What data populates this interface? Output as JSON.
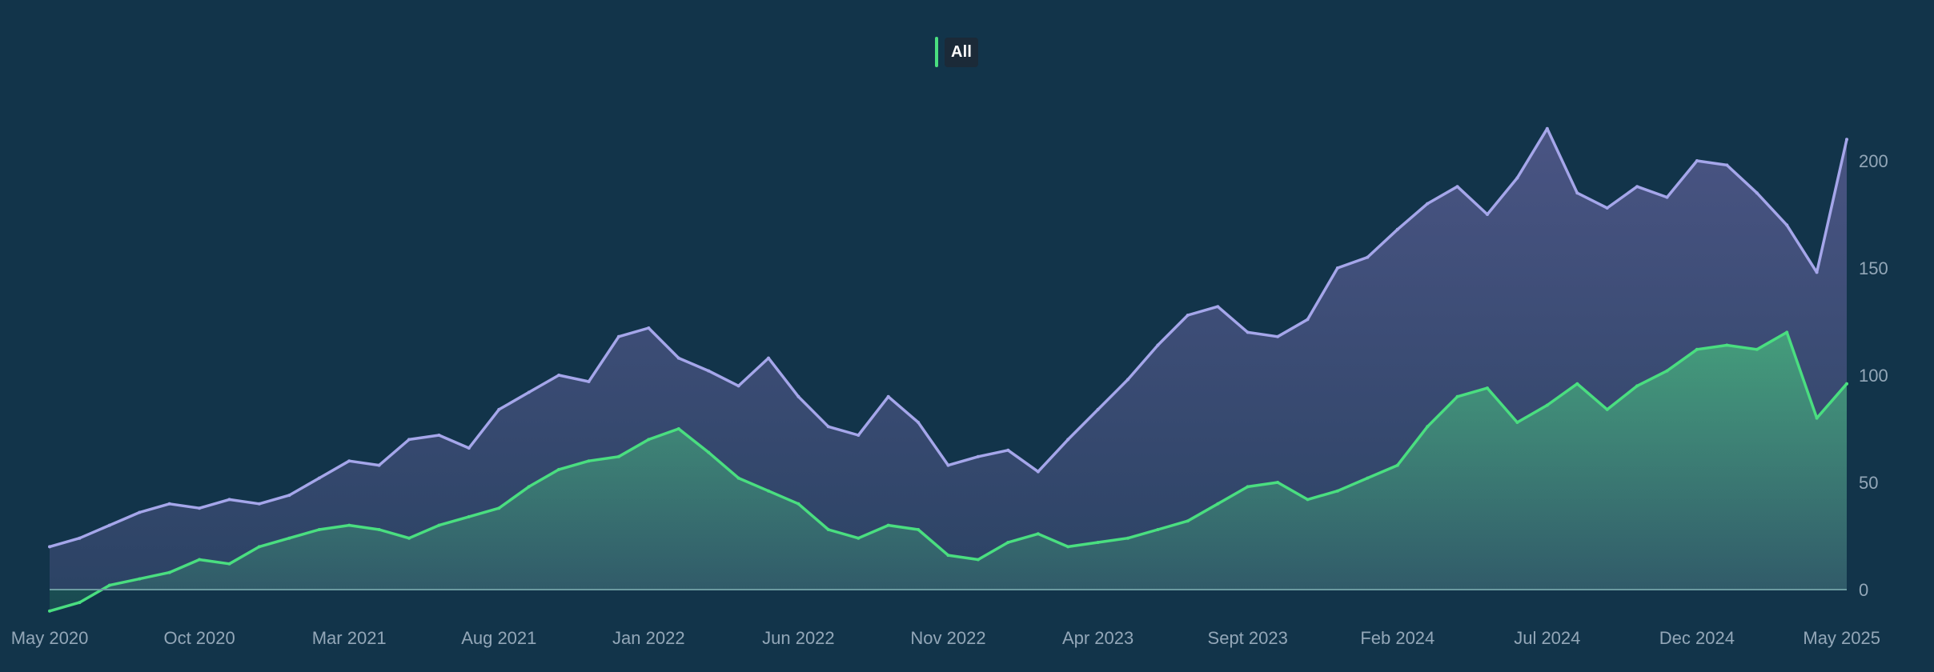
{
  "legend": {
    "label": "All",
    "color": "#4ade80"
  },
  "colors": {
    "background": "#12344a",
    "series_purple_line": "#a5a6ea",
    "series_green_line": "#4ade80",
    "axis_text": "#93a7b8",
    "baseline": "#6b9aa0"
  },
  "chart_data": {
    "type": "area",
    "x_range": [
      "2020-05",
      "2025-05"
    ],
    "x_tick_labels": [
      "May 2020",
      "Oct 2020",
      "Mar 2021",
      "Aug 2021",
      "Jan 2022",
      "Jun 2022",
      "Nov 2022",
      "Apr 2023",
      "Sept 2023",
      "Feb 2024",
      "Jul 2024",
      "Dec 2024",
      "May 2025"
    ],
    "y_tick_labels": [
      "0",
      "50",
      "100",
      "150",
      "200"
    ],
    "y_axis_side": "right",
    "ylim": [
      0,
      220
    ],
    "grid": false,
    "legend_position": "top-center",
    "series": [
      {
        "color": "#a5a6ea",
        "x": [
          "2020-05",
          "2020-06",
          "2020-07",
          "2020-08",
          "2020-09",
          "2020-10",
          "2020-11",
          "2020-12",
          "2021-01",
          "2021-02",
          "2021-03",
          "2021-04",
          "2021-05",
          "2021-06",
          "2021-07",
          "2021-08",
          "2021-09",
          "2021-10",
          "2021-11",
          "2021-12",
          "2022-01",
          "2022-02",
          "2022-03",
          "2022-04",
          "2022-05",
          "2022-06",
          "2022-07",
          "2022-08",
          "2022-09",
          "2022-10",
          "2022-11",
          "2022-12",
          "2023-01",
          "2023-02",
          "2023-03",
          "2023-04",
          "2023-05",
          "2023-06",
          "2023-07",
          "2023-08",
          "2023-09",
          "2023-10",
          "2023-11",
          "2023-12",
          "2024-01",
          "2024-02",
          "2024-03",
          "2024-04",
          "2024-05",
          "2024-06",
          "2024-07",
          "2024-08",
          "2024-09",
          "2024-10",
          "2024-11",
          "2024-12",
          "2025-01",
          "2025-02",
          "2025-03",
          "2025-04",
          "2025-05"
        ],
        "values": [
          20,
          24,
          30,
          36,
          40,
          38,
          42,
          40,
          44,
          52,
          60,
          58,
          70,
          72,
          66,
          84,
          92,
          100,
          97,
          118,
          122,
          108,
          102,
          95,
          108,
          90,
          76,
          72,
          90,
          78,
          58,
          62,
          65,
          55,
          70,
          84,
          98,
          114,
          128,
          132,
          120,
          118,
          126,
          150,
          155,
          168,
          180,
          188,
          175,
          192,
          215,
          185,
          178,
          188,
          183,
          200,
          198,
          185,
          170,
          148,
          210
        ]
      },
      {
        "color": "#4ade80",
        "x": [
          "2020-05",
          "2020-06",
          "2020-07",
          "2020-08",
          "2020-09",
          "2020-10",
          "2020-11",
          "2020-12",
          "2021-01",
          "2021-02",
          "2021-03",
          "2021-04",
          "2021-05",
          "2021-06",
          "2021-07",
          "2021-08",
          "2021-09",
          "2021-10",
          "2021-11",
          "2021-12",
          "2022-01",
          "2022-02",
          "2022-03",
          "2022-04",
          "2022-05",
          "2022-06",
          "2022-07",
          "2022-08",
          "2022-09",
          "2022-10",
          "2022-11",
          "2022-12",
          "2023-01",
          "2023-02",
          "2023-03",
          "2023-04",
          "2023-05",
          "2023-06",
          "2023-07",
          "2023-08",
          "2023-09",
          "2023-10",
          "2023-11",
          "2023-12",
          "2024-01",
          "2024-02",
          "2024-03",
          "2024-04",
          "2024-05",
          "2024-06",
          "2024-07",
          "2024-08",
          "2024-09",
          "2024-10",
          "2024-11",
          "2024-12",
          "2025-01",
          "2025-02",
          "2025-03",
          "2025-04",
          "2025-05"
        ],
        "values": [
          -10,
          -6,
          2,
          5,
          8,
          14,
          12,
          20,
          24,
          28,
          30,
          28,
          24,
          30,
          34,
          38,
          48,
          56,
          60,
          62,
          70,
          75,
          64,
          52,
          46,
          40,
          28,
          24,
          30,
          28,
          16,
          14,
          22,
          26,
          20,
          22,
          24,
          28,
          32,
          40,
          48,
          50,
          42,
          46,
          52,
          58,
          76,
          90,
          94,
          78,
          86,
          96,
          84,
          95,
          102,
          112,
          114,
          112,
          120,
          80,
          96
        ]
      }
    ]
  }
}
